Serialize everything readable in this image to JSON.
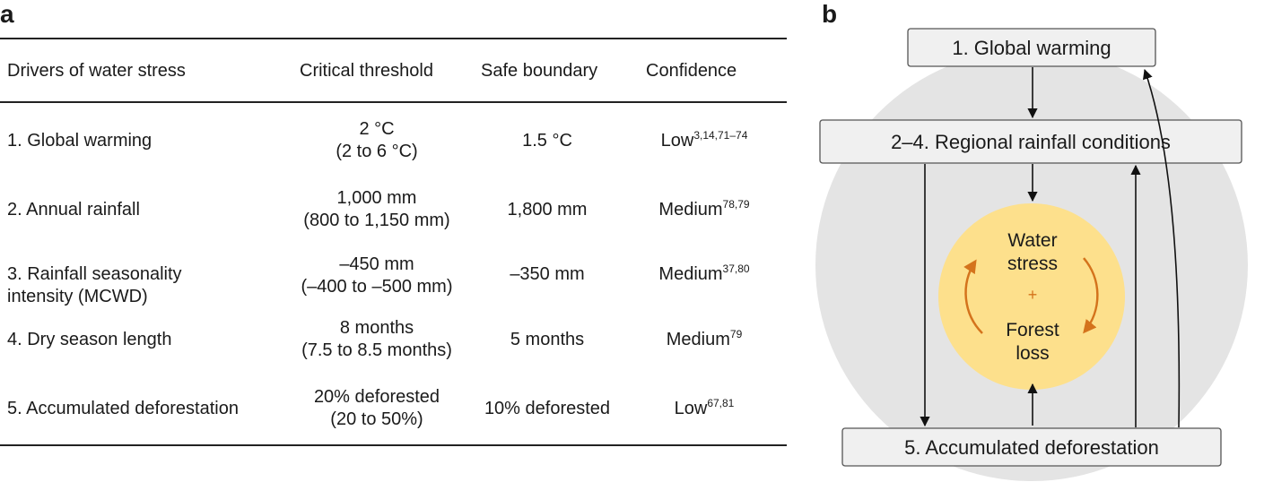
{
  "panel_a": {
    "letter": "a",
    "headers": {
      "driver": "Drivers of water stress",
      "threshold": "Critical threshold",
      "boundary": "Safe boundary",
      "confidence": "Confidence"
    },
    "rows": [
      {
        "driver": [
          "1. Global warming"
        ],
        "threshold": [
          "2 °C",
          "(2 to 6 °C)"
        ],
        "boundary": "1.5 °C",
        "confidence": "Low",
        "refs": "3,14,71–74"
      },
      {
        "driver": [
          "2. Annual rainfall"
        ],
        "threshold": [
          "1,000 mm",
          "(800 to 1,150 mm)"
        ],
        "boundary": "1,800 mm",
        "confidence": "Medium",
        "refs": "78,79"
      },
      {
        "driver": [
          "3. Rainfall seasonality",
          "intensity (MCWD)"
        ],
        "threshold": [
          "–450 mm",
          "(–400 to –500 mm)"
        ],
        "boundary": "–350 mm",
        "confidence": "Medium",
        "refs": "37,80"
      },
      {
        "driver": [
          "4. Dry season length"
        ],
        "threshold": [
          "8 months",
          "(7.5 to 8.5 months)"
        ],
        "boundary": "5 months",
        "confidence": "Medium",
        "refs": "79"
      },
      {
        "driver": [
          "5. Accumulated deforestation"
        ],
        "threshold": [
          "20% deforested",
          "(20 to 50%)"
        ],
        "boundary": "10% deforested",
        "confidence": "Low",
        "refs": "67,81"
      }
    ]
  },
  "panel_b": {
    "letter": "b",
    "boxes": {
      "top": "1. Global warming",
      "middle": "2–4. Regional rainfall conditions",
      "bottom": "5. Accumulated deforestation"
    },
    "inner": {
      "line1": "Water",
      "line2": "stress",
      "plus": "+",
      "line3": "Forest",
      "line4": "loss"
    },
    "colors": {
      "big_circle": "#e4e4e4",
      "inner_circle": "#fde08c",
      "arrow_orange": "#d4731c",
      "box_fill": "#f0f0f0"
    }
  }
}
